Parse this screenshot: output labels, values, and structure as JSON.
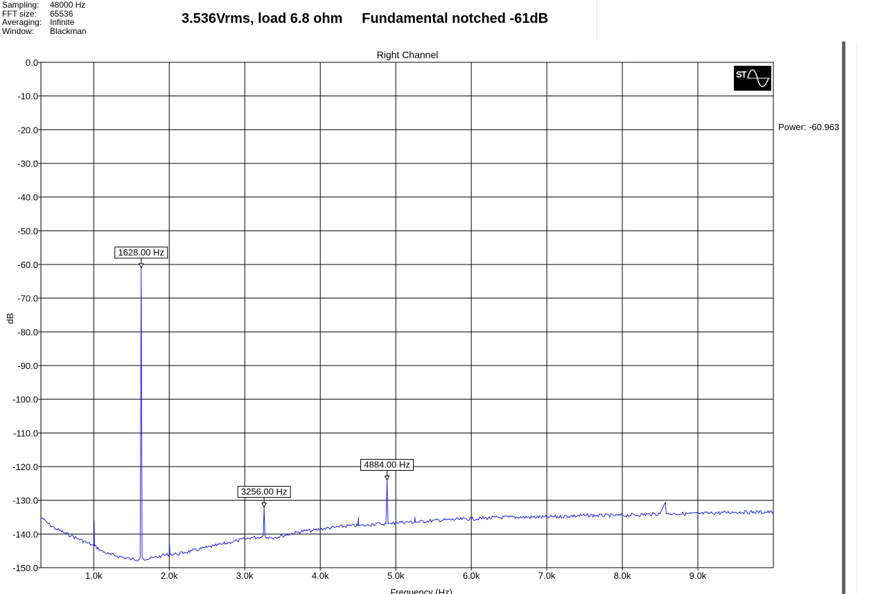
{
  "info": {
    "rows": [
      {
        "label": "Sampling:",
        "value": "48000 Hz"
      },
      {
        "label": "FFT size:",
        "value": "65536"
      },
      {
        "label": "Averaging:",
        "value": "Infinite"
      },
      {
        "label": "Window:",
        "value": "Blackman"
      }
    ]
  },
  "header": {
    "title": "3.536Vrms, load 6.8 ohm     Fundamental notched -61dB"
  },
  "power_readout": "Power: -60.963",
  "logo": {
    "text": "ST",
    "icon": "sine-wave-icon"
  },
  "colors": {
    "trace": "#1f1fe0",
    "grid": "#000000",
    "background": "#ffffff"
  },
  "chart_data": {
    "type": "line",
    "title": "Right Channel",
    "xlabel": "Frequency (Hz)",
    "ylabel": "dB",
    "xlim": [
      300,
      10000
    ],
    "ylim": [
      -150,
      0
    ],
    "grid": true,
    "x_ticks": [
      {
        "value": 1000,
        "label": "1.0k"
      },
      {
        "value": 2000,
        "label": "2.0k"
      },
      {
        "value": 3000,
        "label": "3.0k"
      },
      {
        "value": 4000,
        "label": "4.0k"
      },
      {
        "value": 5000,
        "label": "5.0k"
      },
      {
        "value": 6000,
        "label": "6.0k"
      },
      {
        "value": 7000,
        "label": "7.0k"
      },
      {
        "value": 8000,
        "label": "8.0k"
      },
      {
        "value": 9000,
        "label": "9.0k"
      }
    ],
    "y_ticks": [
      {
        "value": 0,
        "label": "0.0"
      },
      {
        "value": -10,
        "label": "-10.0"
      },
      {
        "value": -20,
        "label": "-20.0"
      },
      {
        "value": -30,
        "label": "-30.0"
      },
      {
        "value": -40,
        "label": "-40.0"
      },
      {
        "value": -50,
        "label": "-50.0"
      },
      {
        "value": -60,
        "label": "-60.0"
      },
      {
        "value": -70,
        "label": "-70.0"
      },
      {
        "value": -80,
        "label": "-80.0"
      },
      {
        "value": -90,
        "label": "-90.0"
      },
      {
        "value": -100,
        "label": "-100.0"
      },
      {
        "value": -110,
        "label": "-110.0"
      },
      {
        "value": -120,
        "label": "-120.0"
      },
      {
        "value": -130,
        "label": "-130.0"
      },
      {
        "value": -140,
        "label": "-140.0"
      },
      {
        "value": -150,
        "label": "-150.0"
      }
    ],
    "series": [
      {
        "x": [
          300,
          400,
          500,
          600,
          700,
          800,
          900,
          1000,
          1005,
          1010,
          1100,
          1200,
          1300,
          1400,
          1500,
          1600,
          1615,
          1628,
          1641,
          1660,
          1700,
          1800,
          1900,
          2000,
          2005,
          2010,
          2100,
          2200,
          2300,
          2400,
          2500,
          2600,
          2700,
          2800,
          2900,
          3000,
          3100,
          3200,
          3245,
          3256,
          3267,
          3300,
          3400,
          3500,
          3600,
          3700,
          3800,
          3900,
          4000,
          4200,
          4400,
          4500,
          4505,
          4510,
          4600,
          4700,
          4800,
          4870,
          4884,
          4898,
          4950,
          5000,
          5250,
          5255,
          5260,
          5500,
          6000,
          6500,
          7000,
          7500,
          8000,
          8500,
          8570,
          8580,
          8590,
          8700,
          9000,
          9500,
          10000
        ],
        "y": [
          -135,
          -137,
          -138.5,
          -139.5,
          -140.5,
          -141.5,
          -142.5,
          -143.5,
          -136,
          -143.5,
          -145,
          -146,
          -146.5,
          -147,
          -147.5,
          -147.5,
          -147,
          -61,
          -147,
          -147.5,
          -147.5,
          -147,
          -146.5,
          -146,
          -143,
          -146,
          -146,
          -145.5,
          -145,
          -144.5,
          -144,
          -143.5,
          -143,
          -142.5,
          -142,
          -141.5,
          -141,
          -141,
          -140.5,
          -132,
          -140.5,
          -141,
          -141,
          -140.5,
          -140,
          -139.5,
          -139,
          -139,
          -138.5,
          -138,
          -137.5,
          -137.5,
          -135,
          -137.5,
          -137.5,
          -137,
          -137,
          -137,
          -124,
          -137,
          -137,
          -136.5,
          -136.5,
          -135,
          -136.5,
          -136,
          -135.5,
          -135,
          -135,
          -134.5,
          -134.5,
          -134,
          -130.5,
          -134,
          -134,
          -134,
          -134,
          -133.5,
          -133.5
        ]
      }
    ],
    "annotations": [
      {
        "x": 1628,
        "y": -61,
        "label": "1628.00 Hz"
      },
      {
        "x": 3256,
        "y": -132,
        "label": "3256.00 Hz"
      },
      {
        "x": 4884,
        "y": -124,
        "label": "4884.00 Hz"
      }
    ]
  }
}
